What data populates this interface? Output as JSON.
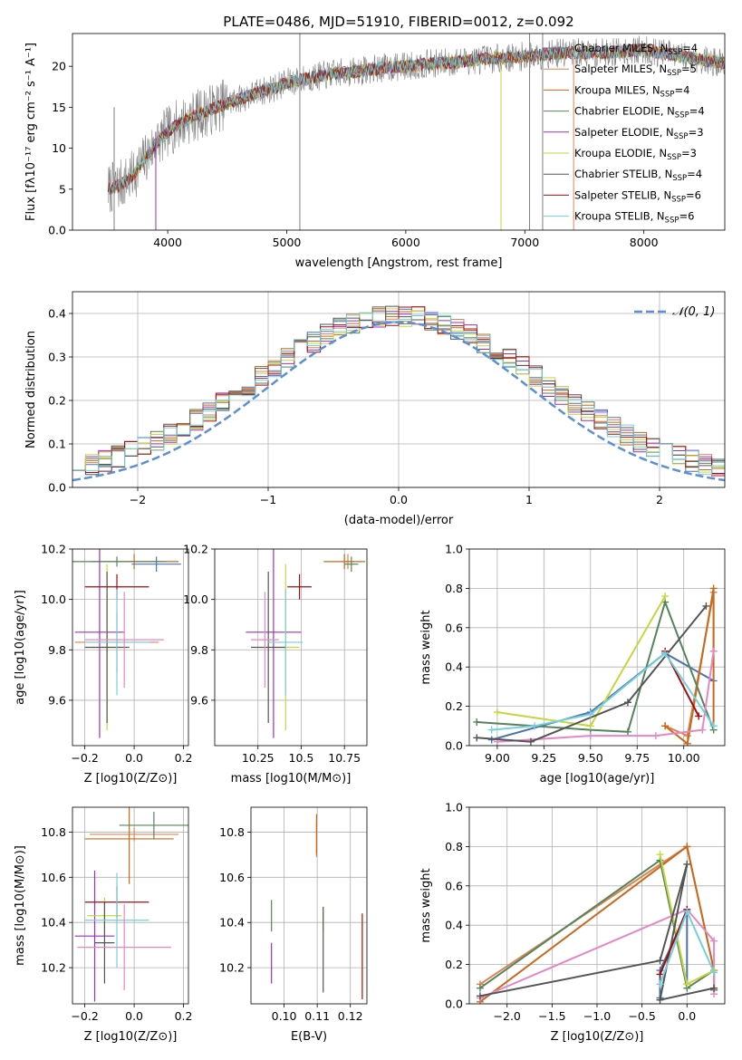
{
  "figure": {
    "title": "PLATE=0486, MJD=51910, FIBERID=0012, z=0.092",
    "model_colors": [
      "#4c72b0",
      "#dd8452",
      "#c8691c",
      "#55845a",
      "#9b30b5",
      "#c5d640",
      "#555555",
      "#9c1010",
      "#76cfdc"
    ]
  },
  "chart_data": [
    {
      "id": "spectrum",
      "type": "line",
      "title": "PLATE=0486, MJD=51910, FIBERID=0012, z=0.092",
      "xlabel": "wavelength [Angstrom, rest frame]",
      "ylabel": "Flux [fλ10⁻¹⁷ erg cm⁻² s⁻¹ A⁻¹]",
      "xlim": [
        3200,
        8680
      ],
      "ylim": [
        0,
        24
      ],
      "xticks": [
        4000,
        5000,
        6000,
        7000,
        8000
      ],
      "yticks": [
        0,
        5,
        10,
        15,
        20
      ],
      "grid": false,
      "legend_position": "top-right",
      "continuum": {
        "x": [
          3500,
          3600,
          3700,
          3800,
          3900,
          4000,
          4100,
          4200,
          4300,
          4400,
          4500,
          4600,
          4700,
          4800,
          4900,
          5000,
          5200,
          5400,
          5600,
          5800,
          6000,
          6200,
          6400,
          6600,
          6800,
          7000,
          7200,
          7400,
          7600,
          7800,
          8000,
          8200,
          8400,
          8600,
          8680
        ],
        "y": [
          5.0,
          5.5,
          6.5,
          8.5,
          10.5,
          12.0,
          13.0,
          13.8,
          14.3,
          15.0,
          15.5,
          16.0,
          16.5,
          17.0,
          17.4,
          18.0,
          18.6,
          19.1,
          19.4,
          19.8,
          20.0,
          20.3,
          20.5,
          20.8,
          21.0,
          21.2,
          21.5,
          21.7,
          21.6,
          21.8,
          22.0,
          21.5,
          21.0,
          20.5,
          20.4
        ]
      },
      "spikes": [
        {
          "x": 3550,
          "y0": 0,
          "y1": 15.0,
          "series": "data"
        },
        {
          "x": 3900,
          "y0": 0,
          "y1": 12.0,
          "series": "Salpeter ELODIE"
        },
        {
          "x": 5110,
          "y0": 0,
          "y1": 24.0,
          "series": "data"
        },
        {
          "x": 6800,
          "y0": 0,
          "y1": 20.0,
          "series": "Kroupa ELODIE"
        },
        {
          "x": 7040,
          "y0": 0,
          "y1": 24.0,
          "series": "data"
        },
        {
          "x": 7150,
          "y0": 0,
          "y1": 24.0,
          "series": "data"
        },
        {
          "x": 7410,
          "y0": 0,
          "y1": 21.0,
          "series": "Salpeter MILES"
        }
      ],
      "series": [
        {
          "name": "Chabrier MILES, N_SSP=4",
          "label_main": "Chabrier MILES, N",
          "label_sub": "SSP",
          "label_tail": "=4",
          "color": "#4c72b0"
        },
        {
          "name": "Salpeter MILES, N_SSP=5",
          "label_main": "Salpeter MILES, N",
          "label_sub": "SSP",
          "label_tail": "=5",
          "color": "#dd8452"
        },
        {
          "name": "Kroupa MILES, N_SSP=4",
          "label_main": "Kroupa MILES, N",
          "label_sub": "SSP",
          "label_tail": "=4",
          "color": "#c8691c"
        },
        {
          "name": "Chabrier ELODIE, N_SSP=4",
          "label_main": "Chabrier ELODIE, N",
          "label_sub": "SSP",
          "label_tail": "=4",
          "color": "#55845a"
        },
        {
          "name": "Salpeter ELODIE, N_SSP=3",
          "label_main": "Salpeter ELODIE, N",
          "label_sub": "SSP",
          "label_tail": "=3",
          "color": "#9b30b5"
        },
        {
          "name": "Kroupa ELODIE, N_SSP=3",
          "label_main": "Kroupa ELODIE, N",
          "label_sub": "SSP",
          "label_tail": "=3",
          "color": "#c5d640"
        },
        {
          "name": "Chabrier STELIB, N_SSP=4",
          "label_main": "Chabrier STELIB, N",
          "label_sub": "SSP",
          "label_tail": "=4",
          "color": "#555555"
        },
        {
          "name": "Salpeter STELIB, N_SSP=6",
          "label_main": "Salpeter STELIB, N",
          "label_sub": "SSP",
          "label_tail": "=6",
          "color": "#9c1010"
        },
        {
          "name": "Kroupa STELIB, N_SSP=6",
          "label_main": "Kroupa STELIB, N",
          "label_sub": "SSP",
          "label_tail": "=6",
          "color": "#76cfdc"
        }
      ]
    },
    {
      "id": "residuals",
      "type": "line",
      "xlabel": "(data-model)/error",
      "ylabel": "Normed distribution",
      "xlim": [
        -2.5,
        2.5
      ],
      "ylim": [
        0,
        0.45
      ],
      "xticks": [
        -2,
        -1,
        0,
        1,
        2
      ],
      "yticks": [
        0.0,
        0.1,
        0.2,
        0.3,
        0.4
      ],
      "grid": true,
      "legend_position": "top-right",
      "bin_width": 0.1,
      "gaussian": {
        "name": "N(0,1)",
        "mean": 0,
        "sigma": 1,
        "peak": 0.38,
        "color": "#5b8fd6"
      }
    },
    {
      "id": "age_vs_Z",
      "type": "scatter",
      "xlabel": "Z [log10(Z/Z⊙)]",
      "ylabel": "age [log10(age/yr)]",
      "xlim": [
        -0.25,
        0.22
      ],
      "ylim": [
        9.42,
        10.2
      ],
      "xticks": [
        -0.2,
        0.0,
        0.2
      ],
      "yticks": [
        9.6,
        9.8,
        10.0,
        10.2
      ],
      "grid": true,
      "points": [
        {
          "x": -0.07,
          "y": 9.83,
          "xerr": 0.17,
          "yerr": 0.12
        },
        {
          "x": 0.0,
          "y": 10.15,
          "xerr": 0.18,
          "yerr": 0.03
        },
        {
          "x": -0.07,
          "y": 10.15,
          "xerr": 0.2,
          "yerr": 0.02
        },
        {
          "x": -0.14,
          "y": 9.87,
          "xerr": 0.1,
          "yerr": 0.42
        },
        {
          "x": -0.11,
          "y": 9.81,
          "xerr": 0.06,
          "yerr": 0.33
        },
        {
          "x": -0.11,
          "y": 9.81,
          "xerr": 0.09,
          "yerr": 0.3
        },
        {
          "x": -0.07,
          "y": 10.05,
          "xerr": 0.13,
          "yerr": 0.05
        },
        {
          "x": -0.07,
          "y": 9.83,
          "xerr": 0.13,
          "yerr": 0.21
        },
        {
          "x": -0.04,
          "y": 9.84,
          "xerr": 0.16,
          "yerr": 0.19
        },
        {
          "x": 0.09,
          "y": 10.14,
          "xerr": 0.1,
          "yerr": 0.03
        }
      ]
    },
    {
      "id": "age_vs_mass",
      "type": "scatter",
      "xlabel": "mass [log10(M/M⊙)]",
      "ylabel": "",
      "xlim": [
        10.0,
        10.88
      ],
      "ylim": [
        9.42,
        10.2
      ],
      "xticks": [
        10.25,
        10.5,
        10.75
      ],
      "yticks": [
        9.6,
        9.8,
        10.0,
        10.2
      ],
      "grid": true,
      "points": [
        {
          "x": 10.77,
          "y": 10.15,
          "xerr": 0.04,
          "yerr": 0.03
        },
        {
          "x": 10.75,
          "y": 10.15,
          "xerr": 0.12,
          "yerr": 0.03
        },
        {
          "x": 10.79,
          "y": 10.14,
          "xerr": 0.04,
          "yerr": 0.03
        },
        {
          "x": 10.34,
          "y": 9.87,
          "xerr": 0.16,
          "yerr": 0.42
        },
        {
          "x": 10.41,
          "y": 9.81,
          "xerr": 0.08,
          "yerr": 0.33
        },
        {
          "x": 10.31,
          "y": 9.81,
          "xerr": 0.1,
          "yerr": 0.3
        },
        {
          "x": 10.49,
          "y": 10.05,
          "xerr": 0.07,
          "yerr": 0.05
        },
        {
          "x": 10.41,
          "y": 9.83,
          "xerr": 0.1,
          "yerr": 0.21
        },
        {
          "x": 10.29,
          "y": 9.84,
          "xerr": 0.08,
          "yerr": 0.19
        }
      ]
    },
    {
      "id": "weight_vs_age",
      "type": "line",
      "xlabel": "age [log10(age/yr)]",
      "ylabel": "mass weight",
      "xlim": [
        8.85,
        10.22
      ],
      "ylim": [
        0,
        1
      ],
      "xticks": [
        9.0,
        9.25,
        9.5,
        9.75,
        10.0
      ],
      "yticks": [
        0.0,
        0.2,
        0.4,
        0.6,
        0.8,
        1.0
      ],
      "grid": true,
      "lines": [
        {
          "color": "#4c72b0",
          "x": [
            8.97,
            9.5,
            9.9,
            10.16
          ],
          "y": [
            0.03,
            0.17,
            0.47,
            0.33
          ]
        },
        {
          "color": "#dd8452",
          "x": [
            9.9,
            10.02,
            10.16,
            10.16
          ],
          "y": [
            0.1,
            0.05,
            0.78,
            0.48
          ]
        },
        {
          "color": "#c8691c",
          "x": [
            9.9,
            10.02,
            10.16,
            10.16
          ],
          "y": [
            0.1,
            0.01,
            0.8,
            0.1
          ]
        },
        {
          "color": "#55845a",
          "x": [
            8.89,
            9.5,
            9.7,
            9.9,
            10.16
          ],
          "y": [
            0.12,
            0.08,
            0.07,
            0.73,
            0.08
          ]
        },
        {
          "color": "#e586c5",
          "x": [
            9.0,
            9.5,
            9.85,
            10.1,
            10.16
          ],
          "y": [
            0.02,
            0.05,
            0.05,
            0.08,
            0.48
          ]
        },
        {
          "color": "#c5d640",
          "x": [
            9.0,
            9.5,
            9.9
          ],
          "y": [
            0.17,
            0.1,
            0.76
          ]
        },
        {
          "color": "#555555",
          "x": [
            8.89,
            9.18,
            9.7,
            10.12
          ],
          "y": [
            0.04,
            0.02,
            0.22,
            0.71
          ]
        },
        {
          "color": "#9c1010",
          "x": [
            9.9,
            10.08
          ],
          "y": [
            0.48,
            0.15
          ]
        },
        {
          "color": "#76cfdc",
          "x": [
            8.97,
            9.2,
            9.5,
            9.9,
            10.16
          ],
          "y": [
            0.08,
            0.1,
            0.16,
            0.47,
            0.1
          ]
        }
      ]
    },
    {
      "id": "mass_vs_Z",
      "type": "scatter",
      "xlabel": "Z [log10(Z/Z⊙)]",
      "ylabel": "mass [log10(M/M⊙)]",
      "xlim": [
        -0.25,
        0.22
      ],
      "ylim": [
        10.04,
        10.91
      ],
      "xticks": [
        -0.2,
        0.0,
        0.2
      ],
      "yticks": [
        10.2,
        10.4,
        10.6,
        10.8
      ],
      "grid": true,
      "points": [
        {
          "x": 0.0,
          "y": 10.79,
          "xerr": 0.18,
          "yerr": 0.03
        },
        {
          "x": -0.02,
          "y": 10.77,
          "xerr": 0.18,
          "yerr": 0.2
        },
        {
          "x": 0.08,
          "y": 10.83,
          "xerr": 0.14,
          "yerr": 0.06
        },
        {
          "x": -0.16,
          "y": 10.34,
          "xerr": 0.08,
          "yerr": 0.29
        },
        {
          "x": -0.12,
          "y": 10.43,
          "xerr": 0.07,
          "yerr": 0.08
        },
        {
          "x": -0.12,
          "y": 10.31,
          "xerr": 0.04,
          "yerr": 0.18
        },
        {
          "x": -0.07,
          "y": 10.49,
          "xerr": 0.13,
          "yerr": 0.07
        },
        {
          "x": -0.07,
          "y": 10.41,
          "xerr": 0.13,
          "yerr": 0.21
        },
        {
          "x": -0.04,
          "y": 10.29,
          "xerr": 0.19,
          "yerr": 0.19
        }
      ]
    },
    {
      "id": "mass_vs_EBV",
      "type": "scatter",
      "xlabel": "E(B-V)",
      "ylabel": "",
      "xlim": [
        0.09,
        0.125
      ],
      "ylim": [
        10.04,
        10.91
      ],
      "xticks": [
        0.1,
        0.11,
        0.12
      ],
      "yticks": [
        10.2,
        10.4,
        10.6,
        10.8
      ],
      "grid": true,
      "points": [
        {
          "x": 0.1098,
          "y": 10.77,
          "xerr": 0.0,
          "yerr": 0.08
        },
        {
          "x": 0.1098,
          "y": 10.79,
          "xerr": 0.0,
          "yerr": 0.09
        },
        {
          "x": 0.0962,
          "y": 10.43,
          "xerr": 0.0,
          "yerr": 0.07
        },
        {
          "x": 0.0962,
          "y": 10.22,
          "xerr": 0.0,
          "yerr": 0.09
        },
        {
          "x": 0.1118,
          "y": 10.41,
          "xerr": 0.0,
          "yerr": 0.05
        },
        {
          "x": 0.1118,
          "y": 10.28,
          "xerr": 0.0,
          "yerr": 0.19
        },
        {
          "x": 0.1236,
          "y": 10.25,
          "xerr": 0.0,
          "yerr": 0.19
        }
      ]
    },
    {
      "id": "weight_vs_Z",
      "type": "line",
      "xlabel": "Z [log10(Z/Z⊙)]",
      "ylabel": "mass weight",
      "xlim": [
        -2.42,
        0.42
      ],
      "ylim": [
        0,
        1
      ],
      "xticks": [
        -2.0,
        -1.5,
        -1.0,
        -0.5,
        0.0
      ],
      "yticks": [
        0.0,
        0.2,
        0.4,
        0.6,
        0.8,
        1.0
      ],
      "grid": true,
      "lines": [
        {
          "color": "#4c72b0",
          "x": [
            -0.3,
            -0.3,
            0.0,
            0.0
          ],
          "y": [
            0.03,
            0.17,
            0.47,
            0.1
          ]
        },
        {
          "color": "#dd8452",
          "x": [
            -2.3,
            0.0,
            0.3,
            0.3
          ],
          "y": [
            0.1,
            0.8,
            0.17,
            0.08
          ]
        },
        {
          "color": "#c8691c",
          "x": [
            -2.3,
            0.0,
            0.3,
            0.3
          ],
          "y": [
            0.01,
            0.8,
            0.17,
            0.07
          ]
        },
        {
          "color": "#55845a",
          "x": [
            -2.3,
            -0.3,
            0.0,
            0.3,
            0.3
          ],
          "y": [
            0.08,
            0.73,
            0.08,
            0.17,
            0.07
          ]
        },
        {
          "color": "#e586c5",
          "x": [
            -2.3,
            0.0,
            0.3,
            0.3
          ],
          "y": [
            0.03,
            0.48,
            0.32,
            0.05
          ]
        },
        {
          "color": "#c5d640",
          "x": [
            -0.3,
            0.0,
            0.3
          ],
          "y": [
            0.76,
            0.1,
            0.17
          ]
        },
        {
          "color": "#555555",
          "x": [
            -2.3,
            -0.3,
            0.0,
            -0.3,
            0.3
          ],
          "y": [
            0.04,
            0.22,
            0.71,
            0.02,
            0.08
          ]
        },
        {
          "color": "#9c1010",
          "x": [
            -0.3,
            0.0
          ],
          "y": [
            0.15,
            0.48
          ]
        },
        {
          "color": "#76cfdc",
          "x": [
            -0.3,
            0.0,
            0.0,
            0.3
          ],
          "y": [
            0.1,
            0.47,
            0.47,
            0.16
          ]
        }
      ]
    }
  ]
}
